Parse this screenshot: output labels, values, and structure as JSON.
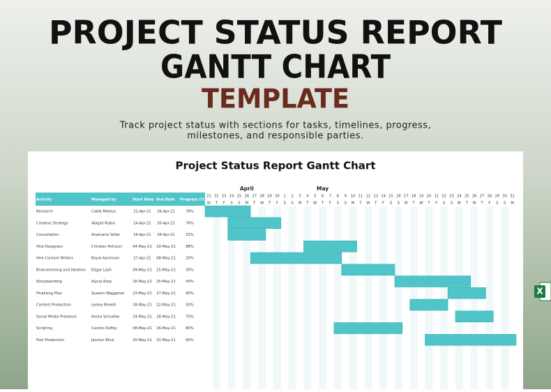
{
  "header": {
    "title_line1": "PROJECT STATUS REPORT",
    "title_line2": "GANTT CHART",
    "title_line3": "TEMPLATE",
    "description_lines": [
      "Track project status with sections for tasks, timelines, progress,",
      "milestones, and responsible parties."
    ]
  },
  "sheet": {
    "title": "Project Status Report Gantt Chart",
    "columns": [
      "Activity",
      "Managed by",
      "Start Date",
      "End Date",
      "Progress (%)"
    ],
    "months": [
      {
        "name": "April",
        "days": [
          21,
          22,
          23,
          24,
          25,
          26,
          27,
          28,
          29,
          30
        ],
        "weekdays": [
          "W",
          "T",
          "F",
          "S",
          "S",
          "M",
          "T",
          "W",
          "T",
          "F"
        ]
      },
      {
        "name": "May",
        "days": [
          1,
          2,
          3,
          4,
          5,
          6,
          7,
          8,
          9,
          10,
          11,
          12,
          13,
          14,
          15,
          16,
          17,
          18,
          19,
          20,
          21,
          22,
          23,
          24,
          25,
          26,
          27,
          28,
          29,
          30,
          31
        ],
        "weekdays": [
          "S",
          "S",
          "M",
          "T",
          "W",
          "T",
          "F",
          "S",
          "S",
          "M",
          "T",
          "W",
          "T",
          "F",
          "S",
          "S",
          "M",
          "T",
          "W",
          "T",
          "F",
          "S",
          "S",
          "M",
          "T",
          "W",
          "T",
          "F",
          "S",
          "S",
          "M"
        ]
      }
    ],
    "tasks": [
      {
        "activity": "Research",
        "manager": "Caleb Markus",
        "start": "21-Apr-21",
        "end": "26-Apr-21",
        "progress": "78%"
      },
      {
        "activity": "Creative Strategy",
        "manager": "Abigail Rubio",
        "start": "24-Apr-21",
        "end": "30-Apr-21",
        "progress": "76%"
      },
      {
        "activity": "Consultation",
        "manager": "Anamaria Seller",
        "start": "24-Apr-21",
        "end": "28-Apr-21",
        "progress": "32%"
      },
      {
        "activity": "Hire Designers",
        "manager": "Christen Petrucci",
        "start": "04-May-21",
        "end": "10-May-21",
        "progress": "88%"
      },
      {
        "activity": "Hire Content Writers",
        "manager": "Royal Aaronson",
        "start": "27-Apr-21",
        "end": "08-May-21",
        "progress": "20%"
      },
      {
        "activity": "Brainstorming and Ideation",
        "manager": "Edgar Lash",
        "start": "09-May-21",
        "end": "15-May-21",
        "progress": "30%"
      },
      {
        "activity": "Storyboarding",
        "manager": "Alycia Earp",
        "start": "16-May-21",
        "end": "25-May-21",
        "progress": "40%"
      },
      {
        "activity": "Finalizing Plan",
        "manager": "Sueann Waggener",
        "start": "23-May-21",
        "end": "27-May-21",
        "progress": "60%"
      },
      {
        "activity": "Content Production",
        "manager": "Lesley Morelli",
        "start": "18-May-21",
        "end": "22-May-21",
        "progress": "50%"
      },
      {
        "activity": "Social Media Presence",
        "manager": "Amira Schuelke",
        "start": "24-May-21",
        "end": "28-May-21",
        "progress": "70%"
      },
      {
        "activity": "Scripting",
        "manager": "Carolin Duffey",
        "start": "08-May-21",
        "end": "16-May-21",
        "progress": "80%"
      },
      {
        "activity": "Post Production",
        "manager": "Jacelyn Blick",
        "start": "20-May-21",
        "end": "31-May-21",
        "progress": "60%"
      }
    ]
  }
}
